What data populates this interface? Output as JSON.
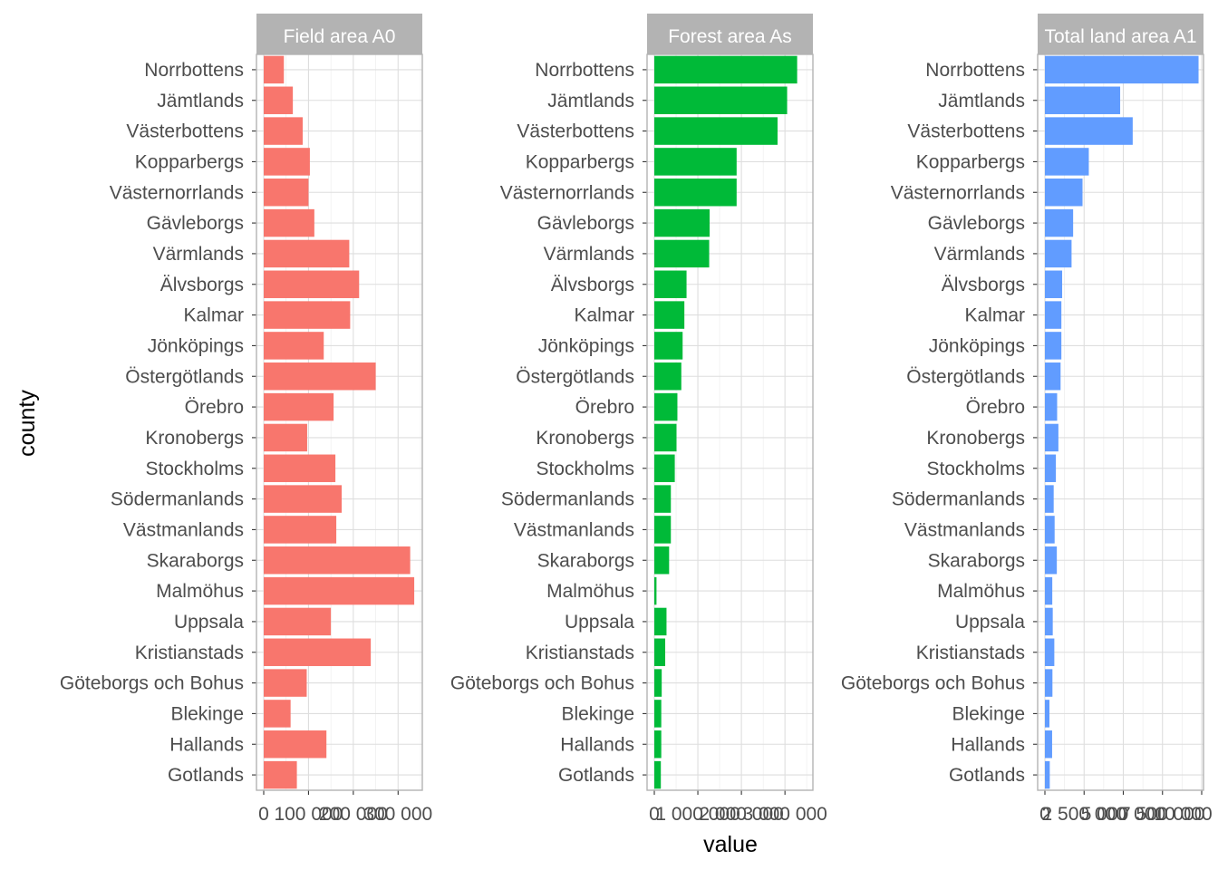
{
  "chart_data": {
    "type": "bar",
    "orientation": "horizontal",
    "facets": "free x scales, one panel per series",
    "xlabel": "value",
    "ylabel": "county",
    "grid": true,
    "legend": "none",
    "categories": [
      "Norrbottens",
      "Jämtlands",
      "Västerbottens",
      "Kopparbergs",
      "Västernorrlands",
      "Gävleborgs",
      "Värmlands",
      "Älvsborgs",
      "Kalmar",
      "Jönköpings",
      "Östergötlands",
      "Örebro",
      "Kronobergs",
      "Stockholms",
      "Södermanlands",
      "Västmanlands",
      "Skaraborgs",
      "Malmöhus",
      "Uppsala",
      "Kristianstads",
      "Göteborgs och Bohus",
      "Blekinge",
      "Hallands",
      "Gotlands"
    ],
    "series": [
      {
        "name": "Field area A0",
        "color": "#F8766D",
        "xlim": [
          0,
          350000
        ],
        "ticks": [
          0,
          100000,
          200000,
          300000
        ],
        "tick_labels": [
          "0",
          "100 000",
          "200 000",
          "300 000"
        ],
        "values": [
          45000,
          65000,
          87000,
          103000,
          100000,
          113000,
          191000,
          213000,
          193000,
          134000,
          250000,
          156000,
          97000,
          160000,
          174000,
          162000,
          327000,
          336000,
          150000,
          239000,
          96000,
          60000,
          140000,
          74000
        ]
      },
      {
        "name": "Forest area As",
        "color": "#00BA38",
        "xlim": [
          0,
          3600000
        ],
        "ticks": [
          0,
          1000000,
          2000000,
          3000000
        ],
        "tick_labels": [
          "0",
          "1 000 000",
          "2 000 000",
          "3 000 000"
        ],
        "values": [
          3280000,
          3050000,
          2830000,
          1890000,
          1890000,
          1270000,
          1260000,
          740000,
          690000,
          650000,
          620000,
          530000,
          510000,
          470000,
          380000,
          380000,
          340000,
          50000,
          280000,
          250000,
          170000,
          160000,
          160000,
          150000
        ]
      },
      {
        "name": "Total land area A1",
        "color": "#619CFF",
        "xlim": [
          0,
          10000000
        ],
        "ticks": [
          0,
          2500000,
          5000000,
          7500000,
          10000000
        ],
        "tick_labels": [
          "0",
          "2 500 000",
          "5 000 000",
          "7 500 000",
          "10 000 000"
        ],
        "values": [
          9800000,
          4800000,
          5600000,
          2800000,
          2400000,
          1800000,
          1700000,
          1100000,
          1050000,
          1050000,
          1000000,
          780000,
          860000,
          700000,
          560000,
          620000,
          760000,
          470000,
          500000,
          600000,
          480000,
          290000,
          460000,
          310000
        ]
      }
    ]
  }
}
